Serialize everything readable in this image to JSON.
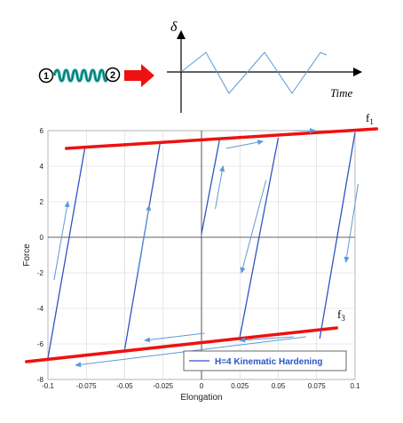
{
  "schematic": {
    "node1_label": "1",
    "node2_label": "2",
    "delta_label": "δ",
    "time_label": "Time"
  },
  "chart_data": {
    "type": "line",
    "xlabel": "Elongation",
    "ylabel": "Force",
    "xlim": [
      -0.1,
      0.1
    ],
    "ylim": [
      -8,
      6
    ],
    "x_ticks": [
      "-0.1",
      "-0.075",
      "-0.05",
      "-0.025",
      "0",
      "0.025",
      "0.05",
      "0.075",
      "0.1"
    ],
    "y_ticks": [
      "6",
      "4",
      "2",
      "0",
      "-2",
      "-4",
      "-6",
      "-8"
    ],
    "grid": true,
    "legend_position": "bottom-right",
    "series": [
      {
        "name": "H=4 Kinematic Hardening",
        "color": "#2f56c0",
        "x": [
          0,
          0.01,
          0.01,
          -0.05,
          -0.05,
          0.05,
          0.05,
          -0.1,
          -0.1,
          0.1,
          0.1
        ],
        "y": [
          0,
          5.6,
          5.6,
          -6.3,
          -6.3,
          5.7,
          5.7,
          -6.9,
          -6.9,
          5.9,
          5.9
        ]
      }
    ],
    "cycle_segments": [
      {
        "x": [
          -0.1,
          -0.076
        ],
        "y": [
          -6.8,
          5.0
        ]
      },
      {
        "x": [
          -0.05,
          -0.027
        ],
        "y": [
          -6.3,
          5.3
        ]
      },
      {
        "x": [
          0.0,
          0.012
        ],
        "y": [
          0.2,
          5.6
        ]
      },
      {
        "x": [
          0.025,
          0.05
        ],
        "y": [
          -5.6,
          5.6
        ]
      },
      {
        "x": [
          0.077,
          0.1
        ],
        "y": [
          -5.7,
          5.9
        ]
      }
    ],
    "bounds": [
      {
        "name": "f1",
        "color": "#ee1111",
        "x": [
          -0.088,
          0.114
        ],
        "y": [
          5.0,
          6.1
        ]
      },
      {
        "name": "f3",
        "color": "#ee1111",
        "x": [
          -0.114,
          0.088
        ],
        "y": [
          -7.0,
          -5.1
        ]
      }
    ],
    "bound_labels": [
      "f1",
      "f3"
    ],
    "direction_arrows": [
      {
        "x": [
          -0.096,
          -0.087
        ],
        "y": [
          -2.4,
          2.0
        ]
      },
      {
        "x": [
          -0.042,
          -0.034
        ],
        "y": [
          -2.4,
          1.8
        ]
      },
      {
        "x": [
          0.009,
          0.014
        ],
        "y": [
          1.6,
          4.0
        ]
      },
      {
        "x": [
          0.06,
          0.074
        ],
        "y": [
          6.0,
          6.0
        ]
      },
      {
        "x": [
          0.016,
          0.04
        ],
        "y": [
          5.0,
          5.4
        ]
      },
      {
        "x": [
          0.042,
          0.026
        ],
        "y": [
          3.2,
          -2.0
        ]
      },
      {
        "x": [
          0.102,
          0.094
        ],
        "y": [
          3.0,
          -1.4
        ]
      },
      {
        "x": [
          0.06,
          0.025
        ],
        "y": [
          -5.6,
          -5.8
        ]
      },
      {
        "x": [
          0.002,
          -0.037
        ],
        "y": [
          -5.4,
          -5.8
        ]
      },
      {
        "x": [
          0.068,
          -0.082
        ],
        "y": [
          -5.6,
          -7.2
        ]
      }
    ]
  }
}
